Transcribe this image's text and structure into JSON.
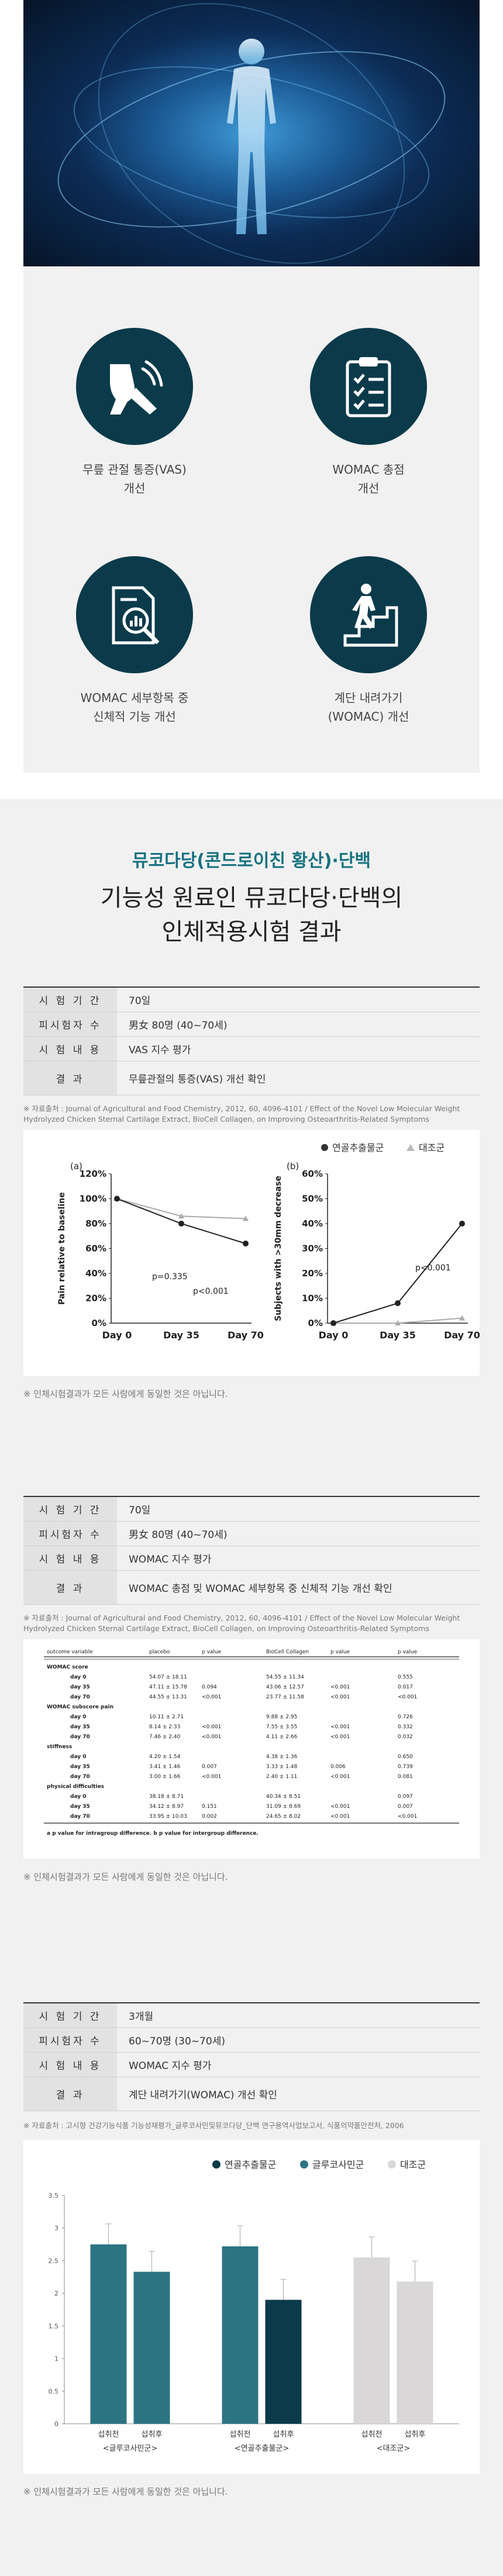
{
  "features": [
    {
      "label": "무릎 관절 통증(VAS)\n개선",
      "icon": "knee-joint-icon"
    },
    {
      "label": "WOMAC 총점\n개선",
      "icon": "clipboard-checklist-icon"
    },
    {
      "label": "WOMAC 세부항목 중\n신체적 기능 개선",
      "icon": "report-magnifier-icon"
    },
    {
      "label": "계단 내려가기\n(WOMAC) 개선",
      "icon": "person-stairs-icon"
    }
  ],
  "section": {
    "subtitle": "뮤코다당(콘드로이친 황산)·단백",
    "title": "기능성 원료인 뮤코다당·단백의\n인체적용시험 결과"
  },
  "study1": {
    "rows": [
      {
        "k": "시 험 기 간",
        "v": "70일"
      },
      {
        "k": "피시험자 수",
        "v": "男女 80명 (40~70세)"
      },
      {
        "k": "시 험 내 용",
        "v": "VAS 지수 평가"
      },
      {
        "k": "결 과",
        "v": "무릎관절의 통증(VAS) 개선 확인"
      }
    ],
    "source": "※ 자료출처 : Journal of Agricultural and Food Chemistry, 2012, 60, 4096-4101 / Effect of the Novel Low Molecular Weight Hydrolyzed Chicken Sternal Cartilage Extract, BioCell Collagen, on Improving Osteoarthritis-Related Symptoms",
    "disclaimer": "※ 인체시험결과가 모든 사람에게 동일한 것은 아닙니다."
  },
  "chart_data": [
    {
      "type": "line",
      "panel": "(a)",
      "x": [
        "Day 0",
        "Day 35",
        "Day 70"
      ],
      "ylabel": "Pain relative to baseline",
      "ylim": [
        0,
        120
      ],
      "yticks": [
        "0%",
        "20%",
        "40%",
        "60%",
        "80%",
        "100%",
        "120%"
      ],
      "series": [
        {
          "name": "연골추출물군",
          "values": [
            100,
            80,
            64
          ]
        },
        {
          "name": "대조군",
          "values": [
            100,
            86,
            84
          ]
        }
      ],
      "annotations": [
        "p=0.335",
        "p<0.001"
      ]
    },
    {
      "type": "line",
      "panel": "(b)",
      "x": [
        "Day 0",
        "Day 35",
        "Day 70"
      ],
      "ylabel": "Subjects with >30mm decrease",
      "ylim": [
        0,
        60
      ],
      "yticks": [
        "0%",
        "10%",
        "20%",
        "30%",
        "40%",
        "50%",
        "60%"
      ],
      "series": [
        {
          "name": "연골추출물군",
          "values": [
            0,
            8,
            40
          ]
        },
        {
          "name": "대조군",
          "values": [
            0,
            0,
            2
          ]
        }
      ],
      "annotations": [
        "p<0.001"
      ]
    },
    {
      "type": "bar",
      "series": [
        {
          "name": "연골추출물군"
        },
        {
          "name": "글루코사민군"
        },
        {
          "name": "대조군"
        }
      ],
      "groups": [
        {
          "name": "<글루코사민군>",
          "bars": [
            {
              "label": "섭취전",
              "value": 2.75
            },
            {
              "label": "섭취후",
              "value": 2.33
            }
          ]
        },
        {
          "name": "<연골추출물군>",
          "bars": [
            {
              "label": "섭취전",
              "value": 2.72
            },
            {
              "label": "섭취후",
              "value": 1.9
            }
          ]
        },
        {
          "name": "<대조군>",
          "bars": [
            {
              "label": "섭취전",
              "value": 2.55
            },
            {
              "label": "섭취후",
              "value": 2.18
            }
          ]
        }
      ],
      "ylim": [
        0,
        3.5
      ],
      "yticks": [
        "0",
        "0.5",
        "1",
        "1.5",
        "2",
        "2.5",
        "3",
        "3.5"
      ]
    }
  ],
  "study2": {
    "rows": [
      {
        "k": "시 험 기 간",
        "v": "70일"
      },
      {
        "k": "피시험자 수",
        "v": "男女 80명 (40~70세)"
      },
      {
        "k": "시 험 내 용",
        "v": "WOMAC 지수 평가"
      },
      {
        "k": "결 과",
        "v": "WOMAC 총점 및 WOMAC 세부항목 중 신체적 기능 개선 확인"
      }
    ],
    "source": "※ 자료출처 : Journal of Agricultural and Food Chemistry, 2012, 60, 4096-4101 / Effect of the Novel Low Molecular Weight Hydrolyzed Chicken Sternal Cartilage Extract, BioCell Collagen, on Improving Osteoarthritis-Related Symptoms",
    "disclaimer": "※ 인체시험결과가 모든 사람에게 동일한 것은 아닙니다."
  },
  "womac_table": {
    "headers": [
      "outcome variable",
      "placebo",
      "p value",
      "BioCell Collagen",
      "p value",
      "p value"
    ],
    "rows": [
      [
        "WOMAC score",
        "",
        "",
        "",
        "",
        ""
      ],
      [
        "day 0",
        "54.07 ± 18.11",
        "",
        "54.55 ± 11.34",
        "",
        "0.555"
      ],
      [
        "day 35",
        "47.11 ± 15.78",
        "0.094",
        "43.06 ± 12.57",
        "<0.001",
        "0.017"
      ],
      [
        "day 70",
        "44.55 ± 13.31",
        "<0.001",
        "23.77 ± 11.58",
        "<0.001",
        "<0.001"
      ],
      [
        "WOMAC subscore pain",
        "",
        "",
        "",
        "",
        ""
      ],
      [
        "day 0",
        "10.11 ± 2.71",
        "",
        "9.88 ± 2.95",
        "",
        "0.726"
      ],
      [
        "day 35",
        "8.14 ± 2.33",
        "<0.001",
        "7.55 ± 3.55",
        "<0.001",
        "0.332"
      ],
      [
        "day 70",
        "7.46 ± 2.40",
        "<0.001",
        "4.11 ± 2.66",
        "<0.001",
        "0.032"
      ],
      [
        "stiffness",
        "",
        "",
        "",
        "",
        ""
      ],
      [
        "day 0",
        "4.20 ± 1.54",
        "",
        "4.38 ± 1.36",
        "",
        "0.650"
      ],
      [
        "day 35",
        "3.41 ± 1.46",
        "0.007",
        "3.33 ± 1.48",
        "0.006",
        "0.739"
      ],
      [
        "day 70",
        "3.00 ± 1.66",
        "<0.001",
        "2.40 ± 1.11",
        "<0.001",
        "0.081"
      ],
      [
        "physical difficulties",
        "",
        "",
        "",
        "",
        ""
      ],
      [
        "day 0",
        "38.18 ± 8.71",
        "",
        "40.34 ± 8.51",
        "",
        "0.097"
      ],
      [
        "day 35",
        "34.12 ± 8.97",
        "0.151",
        "31.09 ± 8.69",
        "<0.001",
        "0.007"
      ],
      [
        "day 70",
        "33.95 ± 10.03",
        "0.002",
        "24.65 ± 8.02",
        "<0.001",
        "<0.001"
      ]
    ],
    "footnote": "a p value for intragroup difference. b p value for intergroup difference."
  },
  "study3": {
    "rows": [
      {
        "k": "시 험 기 간",
        "v": "3개월"
      },
      {
        "k": "피시험자 수",
        "v": "60~70명 (30~70세)"
      },
      {
        "k": "시 험 내 용",
        "v": "WOMAC 지수 평가"
      },
      {
        "k": "결 과",
        "v": "계단 내려가기(WOMAC) 개선 확인"
      }
    ],
    "source": "※ 자료출처 : 고시형 건강기능식품 기능성재평가_글루코사민및뮤코다당_단백 연구용역사업보고서, 식품의약품안전처, 2006",
    "disclaimer": "※ 인체시험결과가 모든 사람에게 동일한 것은 아닙니다."
  },
  "colors": {
    "teal": "#2c7482",
    "dark": "#0b3a4a",
    "gray": "#d9d7d8",
    "accent": "#15717f"
  }
}
